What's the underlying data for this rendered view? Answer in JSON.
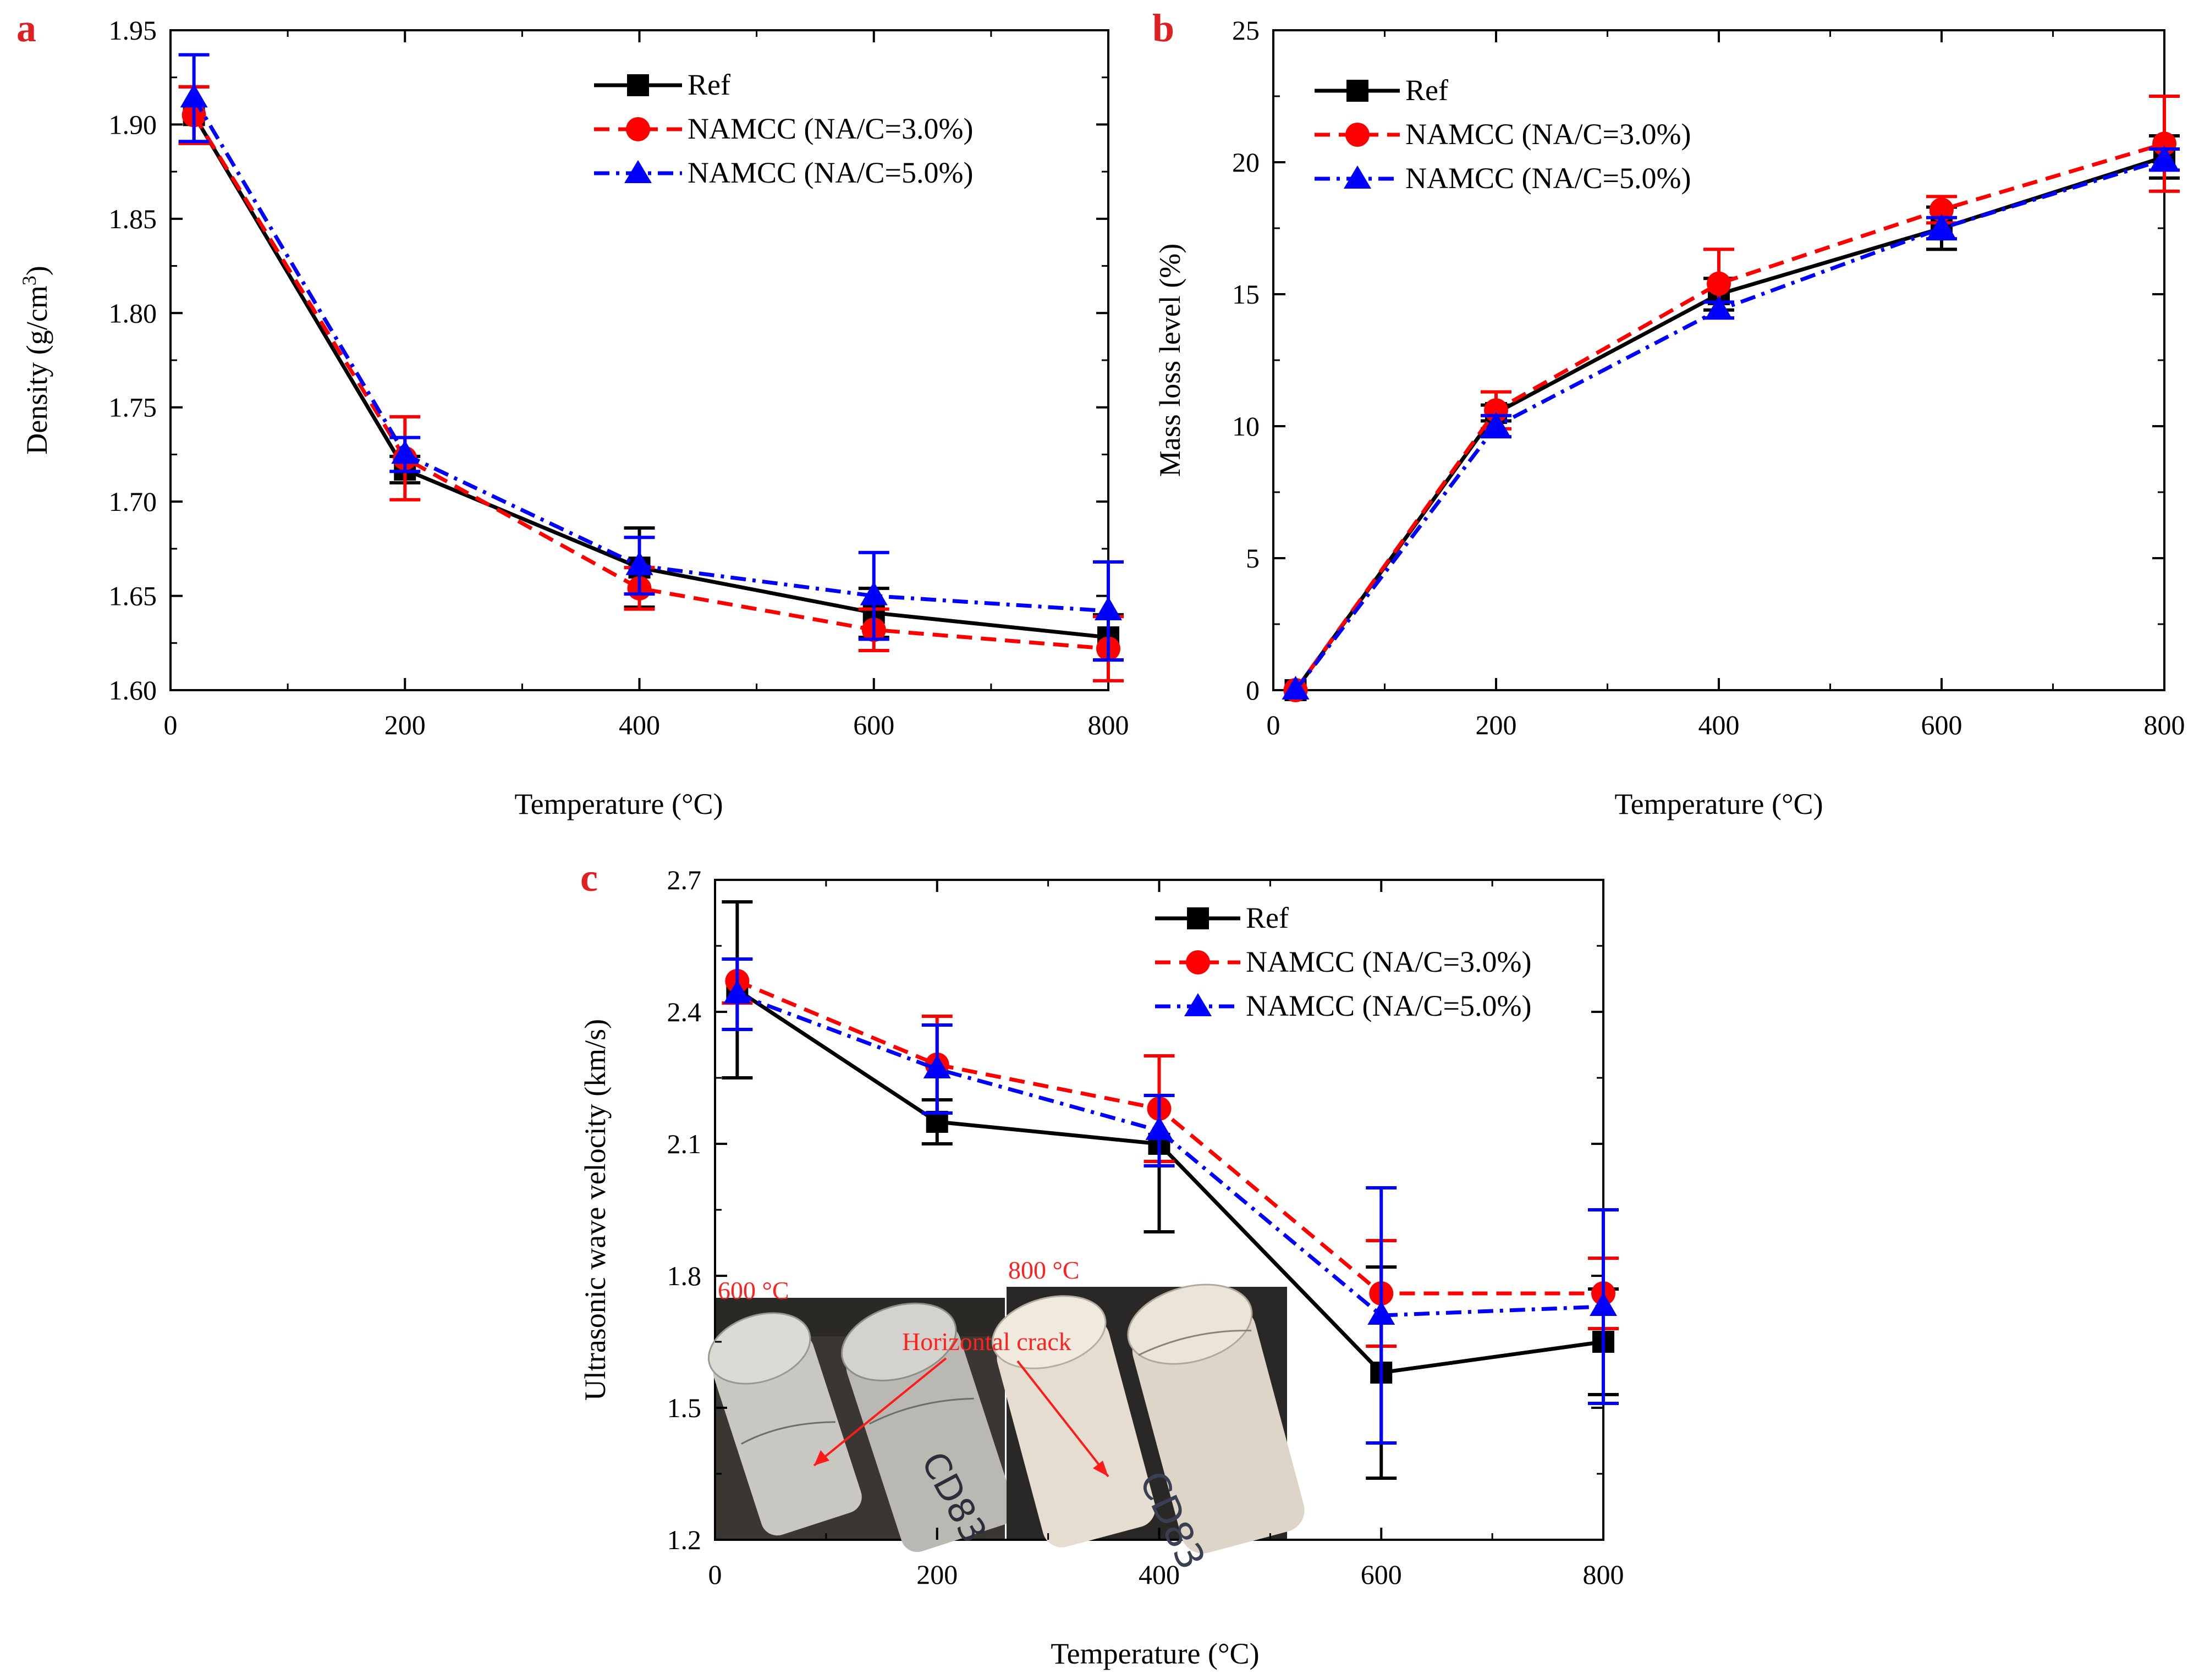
{
  "legend": {
    "ref": "Ref",
    "namcc3": "NAMCC (NA/C=3.0%)",
    "namcc5": "NAMCC (NA/C=5.0%)"
  },
  "colors": {
    "ref": "#000000",
    "namcc3": "#ff0000",
    "namcc5": "#0000ff",
    "panel_label": "#e02020"
  },
  "chart_data": [
    {
      "panel": "a",
      "type": "line",
      "xlabel": "Temperature (°C)",
      "ylabel": "Density (g/cm³)",
      "ylabel_main": "Density (g/cm",
      "ylabel_sup": "3",
      "ylabel_tail": ")",
      "xlim": [
        0,
        800
      ],
      "ylim": [
        1.6,
        1.95
      ],
      "xticks": [
        0,
        200,
        400,
        600,
        800
      ],
      "yticks": [
        1.6,
        1.65,
        1.7,
        1.75,
        1.8,
        1.85,
        1.9,
        1.95
      ],
      "ytick_decimals": 2,
      "x": [
        20,
        200,
        400,
        600,
        800
      ],
      "series": [
        {
          "name": "Ref",
          "key": "ref",
          "values": [
            1.905,
            1.717,
            1.665,
            1.641,
            1.628
          ],
          "errors": [
            0.015,
            0.007,
            0.021,
            0.013,
            0.012
          ]
        },
        {
          "name": "NAMCC (NA/C=3.0%)",
          "key": "namcc3",
          "values": [
            1.905,
            1.723,
            1.654,
            1.632,
            1.622
          ],
          "errors": [
            0.015,
            0.022,
            0.011,
            0.011,
            0.017
          ]
        },
        {
          "name": "NAMCC (NA/C=5.0%)",
          "key": "namcc5",
          "values": [
            1.914,
            1.725,
            1.666,
            1.65,
            1.642
          ],
          "errors": [
            0.023,
            0.009,
            0.015,
            0.023,
            0.026
          ]
        }
      ]
    },
    {
      "panel": "b",
      "type": "line",
      "xlabel": "Temperature (°C)",
      "ylabel": "Mass loss level (%)",
      "xlim": [
        0,
        800
      ],
      "ylim": [
        0,
        25
      ],
      "xticks": [
        0,
        200,
        400,
        600,
        800
      ],
      "yticks": [
        0,
        5,
        10,
        15,
        20,
        25
      ],
      "ytick_decimals": 0,
      "x": [
        20,
        200,
        400,
        600,
        800
      ],
      "series": [
        {
          "name": "Ref",
          "key": "ref",
          "values": [
            0,
            10.5,
            15.0,
            17.5,
            20.2
          ],
          "errors": [
            0,
            0.3,
            0.6,
            0.8,
            0.8
          ]
        },
        {
          "name": "NAMCC (NA/C=3.0%)",
          "key": "namcc3",
          "values": [
            0,
            10.6,
            15.4,
            18.2,
            20.7
          ],
          "errors": [
            0,
            0.7,
            1.3,
            0.5,
            1.8
          ]
        },
        {
          "name": "NAMCC (NA/C=5.0%)",
          "key": "namcc5",
          "values": [
            0,
            10.0,
            14.4,
            17.5,
            20.1
          ],
          "errors": [
            0,
            0.4,
            0.3,
            0.4,
            0.4
          ]
        }
      ]
    },
    {
      "panel": "c",
      "type": "line",
      "xlabel": "Temperature (°C)",
      "ylabel": "Ultrasonic wave velocity (km/s)",
      "xlim": [
        0,
        800
      ],
      "ylim": [
        1.2,
        2.7
      ],
      "xticks": [
        0,
        200,
        400,
        600,
        800
      ],
      "yticks": [
        1.2,
        1.5,
        1.8,
        2.1,
        2.4,
        2.7
      ],
      "ytick_decimals": 1,
      "x": [
        20,
        200,
        400,
        600,
        800
      ],
      "series": [
        {
          "name": "Ref",
          "key": "ref",
          "values": [
            2.45,
            2.15,
            2.1,
            1.58,
            1.65
          ],
          "errors": [
            0.2,
            0.05,
            0.2,
            0.24,
            0.12
          ]
        },
        {
          "name": "NAMCC (NA/C=3.0%)",
          "key": "namcc3",
          "values": [
            2.47,
            2.28,
            2.18,
            1.76,
            1.76
          ],
          "errors": [
            0.05,
            0.11,
            0.12,
            0.12,
            0.08
          ]
        },
        {
          "name": "NAMCC (NA/C=5.0%)",
          "key": "namcc5",
          "values": [
            2.44,
            2.27,
            2.13,
            1.71,
            1.73
          ],
          "errors": [
            0.08,
            0.1,
            0.08,
            0.29,
            0.22
          ]
        }
      ]
    }
  ],
  "inset": {
    "photo1_label": "600 °C",
    "photo2_label": "800 °C",
    "annotation": "Horizontal crack",
    "specimen_mark": "CD83"
  }
}
